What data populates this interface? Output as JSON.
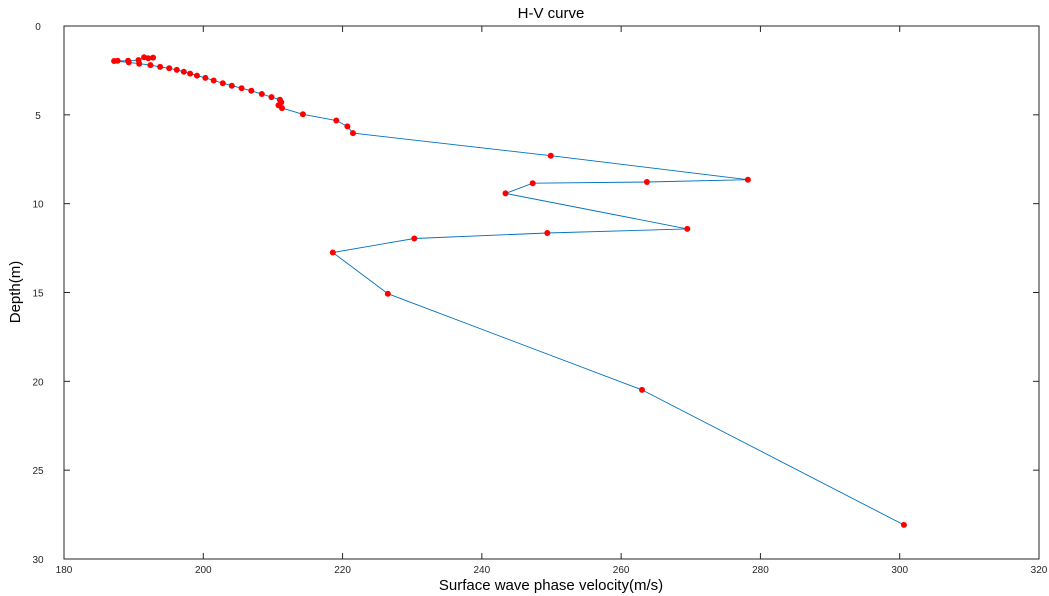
{
  "chart_data": {
    "type": "line",
    "title": "H-V curve",
    "xlabel": "Surface wave phase velocity(m/s)",
    "ylabel": "Depth(m)",
    "xlim": [
      180,
      320
    ],
    "ylim": [
      0,
      30
    ],
    "y_reversed": true,
    "xticks": [
      180,
      200,
      220,
      240,
      260,
      280,
      300,
      320
    ],
    "yticks": [
      0,
      5,
      10,
      15,
      20,
      25,
      30
    ],
    "grid": false,
    "line_color": "#0072BD",
    "marker_color": "#ff0000",
    "series": [
      {
        "points": [
          [
            192.8,
            1.78
          ],
          [
            192.1,
            1.82
          ],
          [
            191.5,
            1.76
          ],
          [
            190.7,
            1.92
          ],
          [
            189.2,
            1.96
          ],
          [
            187.7,
            1.96
          ],
          [
            187.2,
            1.97
          ],
          [
            189.3,
            2.05
          ],
          [
            190.8,
            2.12
          ],
          [
            192.4,
            2.2
          ],
          [
            193.8,
            2.3
          ],
          [
            195.1,
            2.38
          ],
          [
            196.2,
            2.47
          ],
          [
            197.2,
            2.57
          ],
          [
            198.1,
            2.68
          ],
          [
            199.1,
            2.79
          ],
          [
            200.3,
            2.92
          ],
          [
            201.5,
            3.07
          ],
          [
            202.8,
            3.22
          ],
          [
            204.1,
            3.36
          ],
          [
            205.5,
            3.5
          ],
          [
            206.9,
            3.65
          ],
          [
            208.4,
            3.83
          ],
          [
            209.8,
            4.0
          ],
          [
            211.0,
            4.15
          ],
          [
            211.2,
            4.3
          ],
          [
            210.8,
            4.46
          ],
          [
            211.3,
            4.62
          ],
          [
            214.3,
            4.97
          ],
          [
            219.1,
            5.32
          ],
          [
            220.7,
            5.65
          ],
          [
            221.5,
            6.03
          ],
          [
            249.9,
            7.3
          ],
          [
            278.2,
            8.65
          ],
          [
            263.7,
            8.78
          ],
          [
            247.3,
            8.85
          ],
          [
            243.4,
            9.42
          ],
          [
            269.5,
            11.42
          ],
          [
            249.4,
            11.65
          ],
          [
            230.3,
            11.96
          ],
          [
            218.6,
            12.75
          ],
          [
            226.5,
            15.07
          ],
          [
            263.0,
            20.48
          ],
          [
            300.6,
            28.08
          ]
        ]
      }
    ]
  }
}
